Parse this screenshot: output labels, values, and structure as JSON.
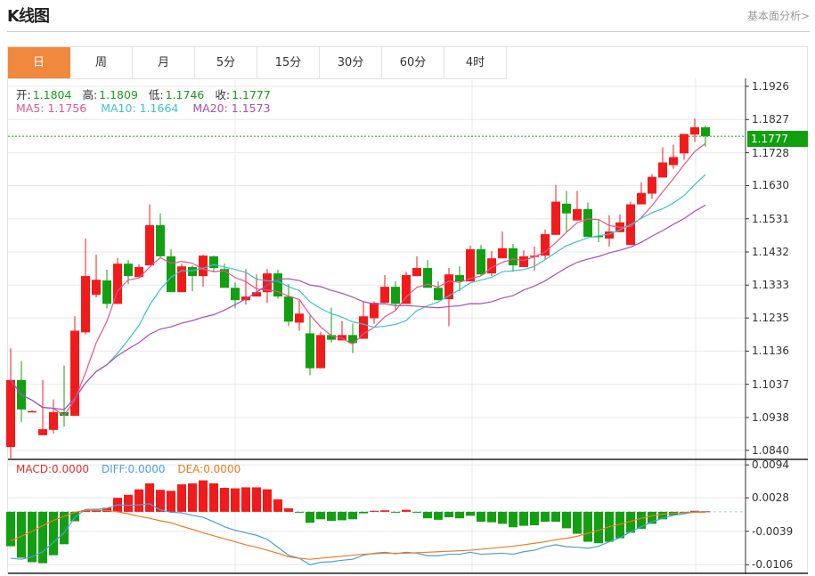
{
  "header": {
    "title": "K线图",
    "more_link": "基本面分析>"
  },
  "tabs": [
    {
      "label": "日",
      "active": true
    },
    {
      "label": "周"
    },
    {
      "label": "月"
    },
    {
      "label": "5分"
    },
    {
      "label": "15分"
    },
    {
      "label": "30分"
    },
    {
      "label": "60分"
    },
    {
      "label": "4时"
    }
  ],
  "ohlc_info": {
    "open_label": "开:",
    "open": "1.1804",
    "high_label": "高:",
    "high": "1.1809",
    "low_label": "低:",
    "low": "1.1746",
    "close_label": "收:",
    "close": "1.1777"
  },
  "ma_info": {
    "ma5": "MA5: 1.1756",
    "ma10": "MA10: 1.1664",
    "ma20": "MA20: 1.1573"
  },
  "macd_info": {
    "macd": "MACD:0.0000",
    "diff": "DIFF:0.0000",
    "dea": "DEA:0.0000"
  },
  "colors": {
    "up": "#f21b1b",
    "down": "#12a012",
    "ma5": "#e8558a",
    "ma10": "#3dc3d0",
    "ma20": "#a44fb8",
    "diff": "#4a9fe0",
    "dea": "#f07a20",
    "accent": "#f0883e",
    "last_price": "#10a010"
  },
  "chart_data": [
    {
      "type": "candlestick",
      "price_ticks": [
        "1.1926",
        "1.1827",
        "1.1728",
        "1.1630",
        "1.1531",
        "1.1432",
        "1.1333",
        "1.1235",
        "1.1136",
        "1.1037",
        "1.0938",
        "1.0840"
      ],
      "last_price": "1.1777",
      "ylim": [
        1.0813,
        1.195
      ],
      "ma_periods": [
        5,
        10,
        20
      ],
      "candles": [
        [
          1.085,
          1.1144,
          1.0813,
          1.105
        ],
        [
          1.105,
          1.1106,
          1.0925,
          1.0962
        ],
        [
          1.0957,
          1.0959,
          1.0954,
          1.0957
        ],
        [
          1.0885,
          1.105,
          1.0885,
          1.0903
        ],
        [
          1.0901,
          1.0992,
          1.089,
          1.0954
        ],
        [
          1.0954,
          1.1093,
          1.0911,
          1.0943
        ],
        [
          1.0943,
          1.124,
          1.0943,
          1.1197
        ],
        [
          1.1192,
          1.1472,
          1.1186,
          1.136
        ],
        [
          1.1304,
          1.1424,
          1.1296,
          1.1349
        ],
        [
          1.1347,
          1.1379,
          1.1264,
          1.1277
        ],
        [
          1.1277,
          1.1413,
          1.1277,
          1.1397
        ],
        [
          1.1397,
          1.1408,
          1.1336,
          1.136
        ],
        [
          1.1357,
          1.1395,
          1.1357,
          1.1387
        ],
        [
          1.1392,
          1.1574,
          1.1392,
          1.1512
        ],
        [
          1.1512,
          1.1547,
          1.1416,
          1.1419
        ],
        [
          1.1419,
          1.144,
          1.1312,
          1.1312
        ],
        [
          1.1312,
          1.1397,
          1.1312,
          1.1389
        ],
        [
          1.1387,
          1.1392,
          1.1315,
          1.136
        ],
        [
          1.136,
          1.1424,
          1.1328,
          1.1421
        ],
        [
          1.1419,
          1.1421,
          1.1371,
          1.1384
        ],
        [
          1.1381,
          1.1397,
          1.1325,
          1.1325
        ],
        [
          1.1325,
          1.1341,
          1.1264,
          1.1288
        ],
        [
          1.1288,
          1.1381,
          1.1275,
          1.1299
        ],
        [
          1.1299,
          1.1365,
          1.1299,
          1.1312
        ],
        [
          1.1312,
          1.1381,
          1.128,
          1.1368
        ],
        [
          1.1368,
          1.1379,
          1.1293,
          1.1299
        ],
        [
          1.1299,
          1.1336,
          1.121,
          1.1224
        ],
        [
          1.1221,
          1.1288,
          1.1197,
          1.1248
        ],
        [
          1.1189,
          1.1242,
          1.1064,
          1.1085
        ],
        [
          1.1085,
          1.1194,
          1.1085,
          1.1184
        ],
        [
          1.1184,
          1.1266,
          1.1162,
          1.117
        ],
        [
          1.1168,
          1.1226,
          1.1168,
          1.1184
        ],
        [
          1.1184,
          1.1218,
          1.113,
          1.116
        ],
        [
          1.1173,
          1.1285,
          1.1173,
          1.124
        ],
        [
          1.1234,
          1.1285,
          1.1218,
          1.128
        ],
        [
          1.128,
          1.1363,
          1.128,
          1.1328
        ],
        [
          1.1328,
          1.1344,
          1.1258,
          1.1277
        ],
        [
          1.1277,
          1.1373,
          1.1277,
          1.1363
        ],
        [
          1.136,
          1.1419,
          1.136,
          1.1384
        ],
        [
          1.1384,
          1.1408,
          1.1325,
          1.1325
        ],
        [
          1.1325,
          1.1344,
          1.1288,
          1.1288
        ],
        [
          1.1291,
          1.1384,
          1.121,
          1.1365
        ],
        [
          1.1363,
          1.1389,
          1.1315,
          1.1344
        ],
        [
          1.1344,
          1.1451,
          1.1344,
          1.144
        ],
        [
          1.144,
          1.1453,
          1.136,
          1.1365
        ],
        [
          1.1368,
          1.1435,
          1.136,
          1.1413
        ],
        [
          1.1413,
          1.1493,
          1.1413,
          1.1443
        ],
        [
          1.1443,
          1.1456,
          1.1373,
          1.1392
        ],
        [
          1.1387,
          1.1437,
          1.1387,
          1.1419
        ],
        [
          1.1419,
          1.1448,
          1.1376,
          1.1421
        ],
        [
          1.1421,
          1.1499,
          1.1408,
          1.1485
        ],
        [
          1.1483,
          1.1632,
          1.1483,
          1.1582
        ],
        [
          1.1576,
          1.1614,
          1.1491,
          1.1547
        ],
        [
          1.1526,
          1.1614,
          1.1526,
          1.156
        ],
        [
          1.156,
          1.1579,
          1.1477,
          1.1477
        ],
        [
          1.148,
          1.1528,
          1.1461,
          1.1477
        ],
        [
          1.1472,
          1.1542,
          1.1448,
          1.1493
        ],
        [
          1.1491,
          1.1544,
          1.1491,
          1.152
        ],
        [
          1.1453,
          1.1582,
          1.1453,
          1.1574
        ],
        [
          1.1574,
          1.164,
          1.1574,
          1.1608
        ],
        [
          1.1606,
          1.1664,
          1.159,
          1.1656
        ],
        [
          1.1654,
          1.1744,
          1.1654,
          1.1699
        ],
        [
          1.1691,
          1.1752,
          1.168,
          1.1715
        ],
        [
          1.1726,
          1.1784,
          1.1707,
          1.1784
        ],
        [
          1.1782,
          1.183,
          1.176,
          1.1804
        ],
        [
          1.1804,
          1.1809,
          1.1746,
          1.1777
        ]
      ]
    },
    {
      "type": "bar+line",
      "name": "MACD",
      "ticks": [
        "0.0094",
        "0.0028",
        "-0.0039",
        "-0.0106"
      ],
      "ylim": [
        -0.0125,
        0.0105
      ],
      "macd": [
        -0.0069,
        -0.0092,
        -0.0101,
        -0.0103,
        -0.0087,
        -0.0065,
        -0.0019,
        0.0003,
        0.0004,
        0.0008,
        0.0028,
        0.0034,
        0.0045,
        0.0057,
        0.0044,
        0.0042,
        0.0055,
        0.0057,
        0.0063,
        0.0057,
        0.0048,
        0.0047,
        0.0049,
        0.0049,
        0.0045,
        0.0025,
        0.0007,
        -0.0001,
        -0.0022,
        -0.0015,
        -0.0018,
        -0.0017,
        -0.0015,
        -0.0003,
        0.0002,
        0.0003,
        -0.0001,
        0.0004,
        -0.0001,
        -0.0013,
        -0.0016,
        -0.0011,
        -0.0013,
        -0.0008,
        -0.002,
        -0.0021,
        -0.0024,
        -0.0031,
        -0.0028,
        -0.0027,
        -0.002,
        -0.002,
        -0.0033,
        -0.0044,
        -0.006,
        -0.0063,
        -0.006,
        -0.0053,
        -0.0042,
        -0.0034,
        -0.0024,
        -0.0015,
        -0.0007,
        -0.0003,
        0.0002,
        0.0001
      ],
      "dea": [
        -0.0058,
        -0.0049,
        -0.0039,
        -0.0028,
        -0.0017,
        -0.0009,
        -0.0001,
        0.0003,
        0.0003,
        0.0003,
        0.0,
        -0.0004,
        -0.0009,
        -0.0013,
        -0.0018,
        -0.0022,
        -0.0029,
        -0.0035,
        -0.0042,
        -0.0048,
        -0.0054,
        -0.006,
        -0.0066,
        -0.0071,
        -0.0077,
        -0.0083,
        -0.009,
        -0.0093,
        -0.0095,
        -0.0093,
        -0.0091,
        -0.0089,
        -0.0087,
        -0.0085,
        -0.0084,
        -0.0083,
        -0.0083,
        -0.0083,
        -0.0082,
        -0.0081,
        -0.008,
        -0.0079,
        -0.0078,
        -0.0077,
        -0.0075,
        -0.0073,
        -0.0071,
        -0.0069,
        -0.0066,
        -0.0063,
        -0.006,
        -0.0056,
        -0.0053,
        -0.0049,
        -0.0043,
        -0.0037,
        -0.003,
        -0.0025,
        -0.0019,
        -0.0013,
        -0.0008,
        -0.0005,
        -0.0003,
        -0.0002,
        -0.0001,
        -0.0001
      ],
      "diff": [
        -0.0093,
        -0.0095,
        -0.009,
        -0.008,
        -0.0061,
        -0.0042,
        -0.0011,
        0.0005,
        0.0005,
        0.0007,
        0.0014,
        0.0013,
        0.0014,
        0.0016,
        0.0004,
        -0.0001,
        -0.0002,
        -0.0007,
        -0.0011,
        -0.002,
        -0.003,
        -0.0037,
        -0.0042,
        -0.0047,
        -0.0055,
        -0.0071,
        -0.0087,
        -0.0093,
        -0.0106,
        -0.0101,
        -0.01,
        -0.0097,
        -0.0095,
        -0.0087,
        -0.0083,
        -0.0081,
        -0.0084,
        -0.0081,
        -0.0083,
        -0.0088,
        -0.0088,
        -0.0085,
        -0.0085,
        -0.0081,
        -0.0085,
        -0.0084,
        -0.0083,
        -0.0085,
        -0.008,
        -0.0077,
        -0.007,
        -0.0066,
        -0.007,
        -0.0071,
        -0.0073,
        -0.0069,
        -0.006,
        -0.0052,
        -0.004,
        -0.003,
        -0.002,
        -0.0013,
        -0.0007,
        -0.0004,
        0.0,
        0.0
      ]
    }
  ]
}
